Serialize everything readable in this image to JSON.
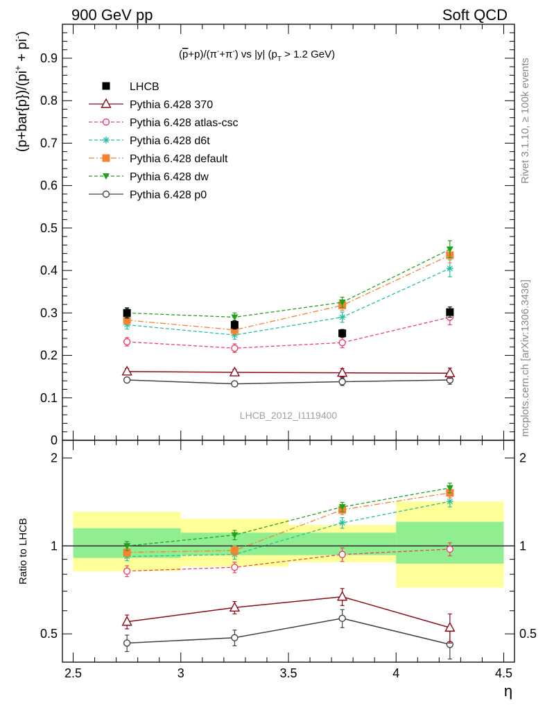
{
  "header": {
    "left": "900 GeV pp",
    "right": "Soft QCD"
  },
  "side_labels": {
    "rivet": "Rivet 3.1.10, ≥ 100k events",
    "mcplots": "mcplots.cern.ch [arXiv:1306.3436]"
  },
  "chart_data": [
    {
      "type": "scatter",
      "panel": "main",
      "title_parts": {
        "open": "(",
        "pbar": "p",
        "mid1": "+p)/(π",
        "sup1": "-",
        "mid2": "+π",
        "sup2": "-",
        "mid3": ") vs |y| (p",
        "sub": "T",
        "end": " > 1.2 GeV)"
      },
      "ylabel_parts": {
        "a": "(p+bar{p})/(pi",
        "sup1": "+",
        "b": " + pi",
        "sup2": "-",
        "c": ")"
      },
      "watermark": "LHCB_2012_I1119400",
      "ylim": [
        0,
        0.98
      ],
      "ytick_labels": [
        "0",
        "0.1",
        "0.2",
        "0.3",
        "0.4",
        "0.5",
        "0.6",
        "0.7",
        "0.8",
        "0.9"
      ],
      "ytick_values": [
        0,
        0.1,
        0.2,
        0.3,
        0.4,
        0.5,
        0.6,
        0.7,
        0.8,
        0.9
      ],
      "legend_position": "top-left",
      "x": [
        2.75,
        3.25,
        3.75,
        4.25
      ],
      "series": [
        {
          "name": "LHCB",
          "marker": "square",
          "color": "#000000",
          "line": "none",
          "values": [
            0.3,
            0.272,
            0.252,
            0.302
          ],
          "errors": [
            0.012,
            0.01,
            0.009,
            0.012
          ]
        },
        {
          "name": "Pythia 6.428 370",
          "marker": "open-triangle",
          "color": "#8b0a1a",
          "line": "solid",
          "values": [
            0.162,
            0.16,
            0.159,
            0.158
          ],
          "errors": [
            0.007,
            0.007,
            0.01,
            0.012
          ]
        },
        {
          "name": "Pythia 6.428 atlas-csc",
          "marker": "open-circle",
          "color": "#ee3e66",
          "line": "dashed",
          "values": [
            0.232,
            0.217,
            0.23,
            0.29
          ],
          "errors": [
            0.01,
            0.01,
            0.012,
            0.018
          ]
        },
        {
          "name": "Pythia 6.428 d6t",
          "marker": "asterisk",
          "color": "#1fbfa0",
          "line": "dashed",
          "values": [
            0.272,
            0.248,
            0.29,
            0.405
          ],
          "errors": [
            0.01,
            0.01,
            0.012,
            0.02
          ]
        },
        {
          "name": "Pythia 6.428 default",
          "marker": "square",
          "color": "#f58330",
          "line": "dashdot",
          "values": [
            0.283,
            0.26,
            0.318,
            0.436
          ],
          "errors": [
            0.01,
            0.01,
            0.012,
            0.018
          ]
        },
        {
          "name": "Pythia 6.428 dw",
          "marker": "down-triangle",
          "color": "#22a01c",
          "line": "dashed",
          "values": [
            0.3,
            0.29,
            0.325,
            0.45
          ],
          "errors": [
            0.01,
            0.01,
            0.012,
            0.02
          ]
        },
        {
          "name": "Pythia 6.428 p0",
          "marker": "open-circle",
          "color": "#404040",
          "line": "solid",
          "values": [
            0.142,
            0.133,
            0.138,
            0.142
          ],
          "errors": [
            0.006,
            0.006,
            0.009,
            0.01
          ]
        }
      ]
    },
    {
      "type": "scatter",
      "panel": "ratio",
      "ylabel": "Ratio to LHCB",
      "xlabel": "η",
      "xlim": [
        2.45,
        4.55
      ],
      "ylim": [
        0.4,
        2.3
      ],
      "xtick_labels": [
        "2.5",
        "3",
        "3.5",
        "4",
        "4.5"
      ],
      "xtick_values": [
        2.5,
        3,
        3.5,
        4,
        4.5
      ],
      "ytick_labels": [
        "0.5",
        "1",
        "2"
      ],
      "ytick_values": [
        0.5,
        1,
        2
      ],
      "uncertainty_bands": {
        "bins": [
          [
            2.5,
            3.0
          ],
          [
            3.0,
            3.5
          ],
          [
            3.5,
            4.0
          ],
          [
            4.0,
            4.5
          ]
        ],
        "inner": [
          [
            0.91,
            1.15
          ],
          [
            0.93,
            1.11
          ],
          [
            0.93,
            1.11
          ],
          [
            0.87,
            1.21
          ]
        ],
        "outer": [
          [
            0.82,
            1.31
          ],
          [
            0.85,
            1.24
          ],
          [
            0.88,
            1.18
          ],
          [
            0.72,
            1.42
          ]
        ],
        "inner_color": "#90ee90",
        "outer_color": "#ffff99"
      },
      "x": [
        2.75,
        3.25,
        3.75,
        4.25
      ],
      "series": [
        {
          "name": "Pythia 6.428 370",
          "values": [
            0.55,
            0.615,
            0.67,
            0.525
          ],
          "errors": [
            0.03,
            0.03,
            0.045,
            0.06
          ]
        },
        {
          "name": "Pythia 6.428 atlas-csc",
          "values": [
            0.82,
            0.845,
            0.935,
            0.975
          ],
          "errors": [
            0.035,
            0.035,
            0.05,
            0.05
          ]
        },
        {
          "name": "Pythia 6.428 d6t",
          "values": [
            0.92,
            0.935,
            1.2,
            1.42
          ],
          "errors": [
            0.03,
            0.035,
            0.05,
            0.06
          ]
        },
        {
          "name": "Pythia 6.428 default",
          "values": [
            0.95,
            0.965,
            1.33,
            1.52
          ],
          "errors": [
            0.03,
            0.035,
            0.05,
            0.06
          ]
        },
        {
          "name": "Pythia 6.428 dw",
          "values": [
            1.0,
            1.09,
            1.36,
            1.58
          ],
          "errors": [
            0.035,
            0.04,
            0.05,
            0.06
          ]
        },
        {
          "name": "Pythia 6.428 p0",
          "values": [
            0.465,
            0.485,
            0.565,
            0.46
          ],
          "errors": [
            0.03,
            0.03,
            0.04,
            0.05
          ]
        }
      ]
    }
  ]
}
